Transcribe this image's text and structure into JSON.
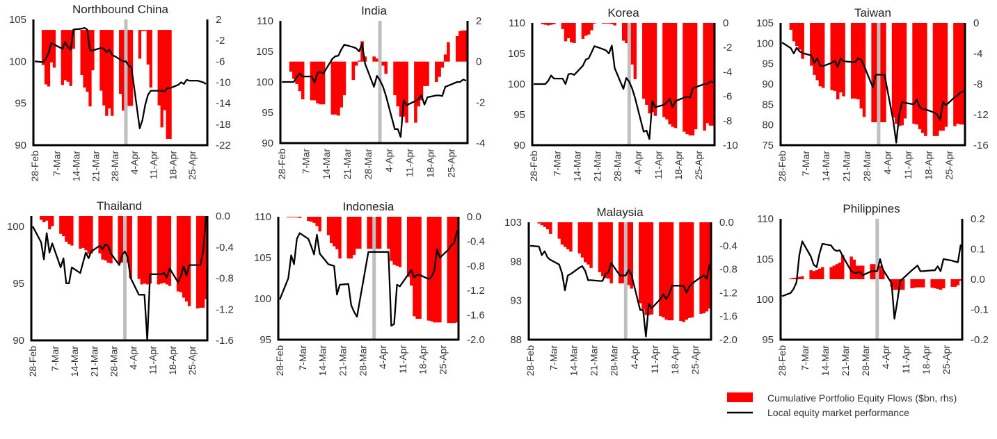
{
  "x_dates": [
    "28-Feb",
    "2-Mar",
    "3-Mar",
    "4-Mar",
    "5-Mar",
    "6-Mar",
    "9-Mar",
    "10-Mar",
    "11-Mar",
    "12-Mar",
    "13-Mar",
    "16-Mar",
    "17-Mar",
    "18-Mar",
    "19-Mar",
    "20-Mar",
    "23-Mar",
    "24-Mar",
    "25-Mar",
    "26-Mar",
    "27-Mar",
    "30-Mar",
    "31-Mar",
    "1-Apr",
    "2-Apr",
    "3-Apr",
    "6-Apr",
    "7-Apr",
    "8-Apr",
    "9-Apr",
    "10-Apr",
    "13-Apr",
    "14-Apr",
    "15-Apr",
    "16-Apr",
    "17-Apr",
    "20-Apr",
    "21-Apr",
    "22-Apr",
    "23-Apr",
    "24-Apr",
    "27-Apr",
    "28-Apr",
    "29-Apr",
    "30-Apr"
  ],
  "x_ticks": [
    "28-Feb",
    "7-Mar",
    "14-Mar",
    "21-Mar",
    "28-Mar",
    "4-Apr",
    "11-Apr",
    "18-Apr",
    "25-Apr"
  ],
  "highlight_date": "1-Apr",
  "colors": {
    "flows": "#ff0000",
    "performance": "#000000",
    "highlight": "#bfbfbf",
    "axis": "#000000"
  },
  "legend": {
    "flows_label": "Cumulative Portfolio Equity Flows ($bn, rhs)",
    "performance_label": "Local equity market performance",
    "placement": "bottom-right"
  },
  "chart_data": [
    {
      "type": "bar+line",
      "title": "Northbound China",
      "left_axis": {
        "min": 90,
        "max": 105,
        "ticks": [
          "90",
          "95",
          "100",
          "105"
        ]
      },
      "right_axis": {
        "min": -22,
        "max": 2,
        "ticks": [
          "-22",
          "-18",
          "-14",
          "-10",
          "-6",
          "-2",
          "2"
        ]
      },
      "flows": [
        null,
        -6.7,
        -10.4,
        -10.8,
        -6.2,
        -7.2,
        -10.5,
        -9.6,
        -9.9,
        -10.7,
        -3.6,
        -8.6,
        -11,
        -11.8,
        -14.6,
        -7.7,
        -11.6,
        -14.4,
        -16.4,
        -15,
        -16.4,
        -12.2,
        -15.4,
        -14.5,
        -14.5,
        -14.5,
        -5.5,
        -0.2,
        -0.2,
        -6.6,
        -11,
        -14.4,
        -18.6,
        -15.3,
        -20.8,
        -20.8,
        null,
        null,
        null,
        null,
        null,
        null,
        null,
        null,
        null
      ],
      "performance": [
        100,
        99.9,
        100.3,
        101,
        102.2,
        102,
        101.5,
        102.3,
        101.7,
        101.4,
        103.8,
        103.9,
        104,
        103.8,
        101.3,
        101.3,
        101.6,
        101.5,
        101.1,
        101.4,
        100.8,
        100.2,
        100,
        100,
        99.5,
        99.3,
        92,
        93,
        94.8,
        96,
        96.5,
        96.5,
        96.5,
        96.4,
        96.8,
        96.8,
        97.2,
        97.5,
        97.3,
        97.8,
        97.7,
        97.7,
        97.6,
        97.5,
        97.3
      ]
    },
    {
      "type": "bar+line",
      "title": "India",
      "left_axis": {
        "min": 90,
        "max": 110,
        "ticks": [
          "90",
          "95",
          "100",
          "105",
          "110"
        ]
      },
      "right_axis": {
        "min": -4,
        "max": 2,
        "ticks": [
          "-4",
          "-2",
          "0",
          "2"
        ]
      },
      "flows": [
        null,
        -0.5,
        -0.85,
        -1.1,
        -1.45,
        -1.85,
        -1.9,
        -1.9,
        -2.05,
        -2.1,
        -2.1,
        -2.6,
        -2.6,
        -2.65,
        -2.25,
        -1.65,
        -0.9,
        -0.2,
        0.05,
        1.0,
        0.25,
        0.25,
        0.15,
        0.1,
        -0.2,
        -0.6,
        -1.65,
        -2.2,
        -2.7,
        -2.7,
        -3.0,
        -3.0,
        -2.2,
        -1.9,
        -1.2,
        -1.2,
        -1.0,
        -0.75,
        -0.3,
        0.35,
        0.95,
        1.25,
        1.5,
        1.53,
        1.53
      ],
      "performance": [
        100,
        100,
        100,
        100.8,
        101.4,
        100.9,
        100.9,
        99.9,
        101.5,
        101.6,
        101.4,
        103.8,
        104.2,
        104.3,
        105.3,
        106.1,
        105.7,
        105.5,
        105,
        106.3,
        103,
        99.2,
        101,
        100.3,
        99.3,
        97.8,
        92.3,
        92.3,
        91,
        97,
        96.2,
        96.9,
        97.2,
        97.8,
        96.3,
        97.5,
        97.8,
        97.8,
        97.7,
        99.2,
        99.4,
        100,
        100,
        100.4,
        100.2
      ]
    },
    {
      "type": "bar+line",
      "title": "Korea",
      "left_axis": {
        "min": 90,
        "max": 110,
        "ticks": [
          "90",
          "95",
          "100",
          "105",
          "110"
        ]
      },
      "right_axis": {
        "min": -10,
        "max": 0,
        "ticks": [
          "-10",
          "-8",
          "-6",
          "-4",
          "-2",
          "0"
        ]
      },
      "flows": [
        null,
        -0.1,
        -0.15,
        -0.2,
        -0.15,
        -0.1,
        -0.5,
        -1.5,
        -1.25,
        -1.6,
        -1.65,
        -1.3,
        -1.05,
        -0.95,
        -0.6,
        -0.05,
        -0.05,
        -0.05,
        -0.05,
        -0.1,
        -0.2,
        -1.45,
        -1.65,
        -2.5,
        -3.4,
        -4.6,
        -6.2,
        -6.7,
        -7.4,
        -7.3,
        -7.6,
        -7.7,
        -7.9,
        -8.3,
        -8.5,
        -8.6,
        -8.9,
        -9.1,
        -9.2,
        -9.2,
        -8.7,
        -8.8,
        -8.2,
        -8.4,
        -8.4
      ],
      "performance": [
        100,
        100,
        100,
        100.5,
        101.4,
        100.9,
        100.9,
        100,
        101.6,
        101.7,
        101.5,
        103,
        104,
        104.2,
        105.2,
        106.2,
        105.7,
        105.5,
        105,
        106.3,
        102.6,
        99.2,
        101,
        100.4,
        99.3,
        97.8,
        92.2,
        92.4,
        91,
        97.2,
        96.2,
        96.6,
        97,
        97.6,
        96.2,
        97.2,
        97.8,
        97.9,
        97.8,
        99.3,
        99.5,
        100,
        100,
        100.4,
        100.3
      ]
    },
    {
      "type": "bar+line",
      "title": "Taiwan",
      "left_axis": {
        "min": 75,
        "max": 105,
        "ticks": [
          "75",
          "80",
          "85",
          "90",
          "95",
          "100",
          "105"
        ]
      },
      "right_axis": {
        "min": -16,
        "max": 0,
        "ticks": [
          "-16",
          "-12",
          "-8",
          "-4",
          "0"
        ]
      },
      "flows": [
        null,
        -0.9,
        -2.4,
        -3,
        -3.5,
        -4.7,
        -5.6,
        -6.8,
        -7.5,
        -8.3,
        -8.5,
        -8.8,
        -8.9,
        -10,
        -9.1,
        -9.6,
        -9.9,
        -9.9,
        -10,
        -11.2,
        -12.3,
        -13,
        -13,
        -13,
        -13,
        -13,
        -12.4,
        -13.2,
        -13.5,
        -13.4,
        -12.5,
        -13.2,
        -13.3,
        -13.9,
        -14.4,
        -14.8,
        -14.8,
        -14.8,
        -14.1,
        -14.1,
        -13.6,
        -13.5,
        -13.2,
        -13.3,
        -13.3
      ],
      "performance": [
        100.2,
        98.8,
        97.5,
        98.9,
        98,
        97.6,
        97,
        95.2,
        96.3,
        94.5,
        94.4,
        95.2,
        95.7,
        94.2,
        96.3,
        95.6,
        95.4,
        95.4,
        96.3,
        96,
        94.5,
        89.2,
        92.3,
        92.3,
        92.3,
        92.3,
        81,
        75.6,
        82.5,
        85.6,
        85.4,
        85,
        86.2,
        84.4,
        83.8,
        83.8,
        83,
        82.5,
        81.2,
        85.6,
        84.8,
        86.8,
        87.2,
        88,
        88.2
      ]
    },
    {
      "type": "bar+line",
      "title": "Thailand",
      "left_axis": {
        "min": 90,
        "max": 100.9,
        "ticks": [
          "90",
          "95",
          "100"
        ]
      },
      "right_axis": {
        "min": -1.6,
        "max": 0,
        "ticks": [
          "-1.6",
          "-1.2",
          "-0.8",
          "-0.4",
          "0.0"
        ]
      },
      "flows": [
        null,
        -0.05,
        -0.08,
        -0.06,
        -0.17,
        -0.13,
        -0.23,
        -0.26,
        -0.33,
        -0.36,
        -0.38,
        -0.42,
        -0.41,
        -0.44,
        -0.49,
        -0.48,
        -0.48,
        -0.56,
        -0.57,
        -0.6,
        -0.61,
        -0.6,
        -0.6,
        -0.6,
        -0.6,
        -0.8,
        -0.81,
        -0.88,
        -0.87,
        -0.88,
        -0.87,
        -0.88,
        -0.87,
        -0.86,
        -0.88,
        -0.9,
        -0.97,
        -0.98,
        -1.05,
        -1.1,
        -1.16,
        -1.19,
        -1.18,
        -1.18,
        -1.07
      ],
      "performance": [
        100,
        98.6,
        97.1,
        99.4,
        97.7,
        98.5,
        96.4,
        97.2,
        95,
        95,
        96.4,
        95.9,
        96.8,
        97.7,
        97.2,
        97.8,
        98.3,
        98,
        98.4,
        98.3,
        97.6,
        96.6,
        97.5,
        97.8,
        97.3,
        95.5,
        94,
        94,
        94,
        90,
        95.8,
        95.8,
        95.8,
        95.9,
        95.5,
        96.3,
        95.1,
        95.6,
        96.5,
        95.7,
        96.6,
        96.6,
        96.6,
        97.8,
        100.9
      ]
    },
    {
      "type": "bar+line",
      "title": "Indonesia",
      "left_axis": {
        "min": 95,
        "max": 110,
        "ticks": [
          "95",
          "100",
          "105",
          "110"
        ]
      },
      "right_axis": {
        "min": -2,
        "max": 0,
        "ticks": [
          "-2.0",
          "-1.6",
          "-1.2",
          "-0.8",
          "-0.4",
          "0.0"
        ]
      },
      "flows": [
        null,
        -0.01,
        -0.01,
        -0.01,
        -0.01,
        -0.02,
        -0.07,
        -0.08,
        -0.1,
        -0.15,
        -0.24,
        -0.3,
        -0.43,
        -0.48,
        -0.53,
        -0.68,
        -0.68,
        -0.68,
        -0.62,
        -0.52,
        -0.52,
        -0.52,
        -0.52,
        -0.52,
        -0.52,
        -0.52,
        -0.52,
        -0.72,
        -0.78,
        -0.8,
        -0.82,
        -0.98,
        -1.12,
        -1.62,
        -1.66,
        -1.66,
        -1.69,
        -1.7,
        -1.72,
        -1.72,
        -1.72,
        -1.73,
        -1.73,
        -1.73,
        -1.72
      ],
      "performance": [
        99.9,
        102.5,
        105.3,
        104.2,
        107.3,
        108,
        107.3,
        106.4,
        105.4,
        107.8,
        105.5,
        104.2,
        104.1,
        104,
        100.5,
        101.7,
        101.8,
        99.2,
        98.4,
        97.8,
        99.8,
        105.7,
        105.7,
        105.7,
        105.7,
        105.7,
        105.7,
        96.7,
        96.9,
        101.7,
        101.5,
        103,
        103.5,
        102.6,
        102.9,
        102.9,
        102.4,
        102.6,
        103.4,
        106,
        105,
        106,
        106.5,
        106.8,
        108.3
      ]
    },
    {
      "type": "bar+line",
      "title": "Malaysia",
      "left_axis": {
        "min": 88,
        "max": 103,
        "ticks": [
          "88",
          "93",
          "98",
          "103"
        ]
      },
      "right_axis": {
        "min": -2,
        "max": 0,
        "ticks": [
          "-2.0",
          "-1.6",
          "-1.2",
          "-0.8",
          "-0.4",
          "0.0"
        ]
      },
      "flows": [
        null,
        -0.02,
        -0.05,
        -0.08,
        -0.12,
        -0.2,
        -0.28,
        -0.38,
        -0.42,
        -0.46,
        -0.5,
        -0.53,
        -0.6,
        -0.68,
        -0.72,
        -0.78,
        -0.85,
        -0.92,
        -0.95,
        -0.96,
        -1.04,
        -1.04,
        -1.04,
        -1.05,
        -1.07,
        -1.13,
        -1.38,
        -1.48,
        -1.58,
        -1.58,
        -1.57,
        -1.6,
        -1.62,
        -1.66,
        -1.67,
        -1.67,
        -1.68,
        -1.7,
        -1.66,
        -1.63,
        -1.62,
        -1.56,
        -1.55,
        -1.52,
        -1.47
      ],
      "performance": [
        100,
        99.9,
        98.8,
        99.3,
        98.5,
        98.2,
        97.6,
        96.5,
        94.3,
        96.2,
        96.4,
        97.2,
        97.4,
        96.8,
        95.6,
        95.6,
        95.5,
        95.5,
        96.4,
        96.6,
        97.8,
        96.2,
        96.2,
        96.2,
        96.9,
        96.3,
        91.8,
        91.8,
        88.4,
        92.6,
        92,
        93.2,
        93.8,
        93.2,
        93.8,
        94.9,
        94.9,
        94.9,
        94,
        94.8,
        95.2,
        96,
        96.2,
        95.8,
        97.6
      ]
    },
    {
      "type": "bar+line",
      "title": "Philippines",
      "left_axis": {
        "min": 95,
        "max": 110,
        "ticks": [
          "95",
          "100",
          "105",
          "110"
        ]
      },
      "right_axis": {
        "min": -0.2,
        "max": 0.2,
        "ticks": [
          "-0.2",
          "-0.1",
          "0.0",
          "0.1",
          "0.2"
        ]
      },
      "flows": [
        null,
        0.003,
        0.005,
        0.005,
        0.008,
        0.01,
        0.03,
        0.027,
        0.03,
        0.035,
        0.04,
        0.04,
        0.045,
        0.05,
        0.055,
        0.08,
        0.075,
        0.065,
        0.045,
        0.045,
        0.045,
        0.05,
        0.05,
        0.045,
        0.045,
        0.03,
        -0.025,
        -0.035,
        -0.035,
        -0.035,
        -0.035,
        -0.03,
        -0.028,
        -0.027,
        -0.027,
        -0.027,
        -0.028,
        -0.03,
        -0.032,
        -0.035,
        -0.03,
        -0.025,
        -0.025,
        -0.02,
        -0.005
      ],
      "performance": [
        100.4,
        100.8,
        101.3,
        102.1,
        105.5,
        107.2,
        105.3,
        104.3,
        104,
        105.7,
        106.9,
        106.7,
        106.2,
        106,
        106.1,
        105.4,
        103.5,
        103.3,
        103.3,
        103.4,
        103,
        103.5,
        103.5,
        103.5,
        105,
        103.7,
        102,
        97.6,
        99.8,
        102.3,
        102.6,
        103.6,
        103.9,
        104.2,
        103.5,
        103.5,
        103.6,
        103.6,
        104.1,
        103.5,
        105,
        104.8,
        104.7,
        104.6,
        106.8
      ]
    }
  ]
}
